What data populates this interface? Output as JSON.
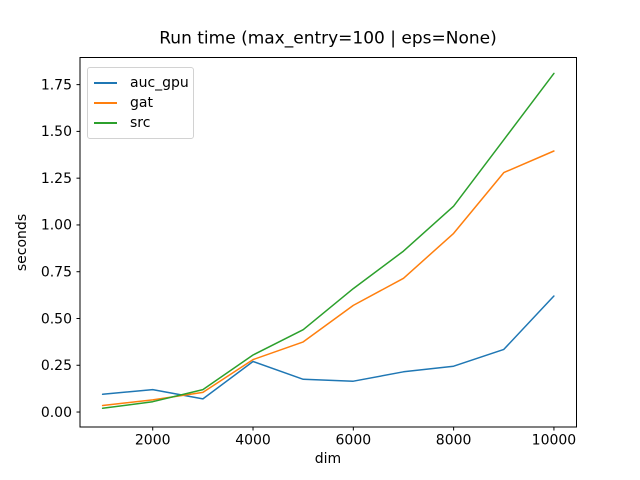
{
  "chart_data": {
    "type": "line",
    "title": "Run time (max_entry=100 | eps=None)",
    "xlabel": "dim",
    "ylabel": "seconds",
    "x": [
      1000,
      2000,
      3000,
      4000,
      5000,
      6000,
      7000,
      8000,
      9000,
      10000
    ],
    "series": [
      {
        "name": "auc_gpu",
        "color": "#1f77b4",
        "values": [
          0.095,
          0.12,
          0.07,
          0.27,
          0.175,
          0.165,
          0.215,
          0.245,
          0.335,
          0.62
        ]
      },
      {
        "name": "gat",
        "color": "#ff7f0e",
        "values": [
          0.035,
          0.065,
          0.105,
          0.28,
          0.375,
          0.57,
          0.715,
          0.955,
          1.28,
          1.395
        ]
      },
      {
        "name": "src",
        "color": "#2ca02c",
        "values": [
          0.02,
          0.055,
          0.12,
          0.305,
          0.44,
          0.66,
          0.86,
          1.1,
          1.455,
          1.81
        ]
      }
    ],
    "xticks": [
      2000,
      4000,
      6000,
      8000,
      10000
    ],
    "ytick_labels": [
      "0.00",
      "0.25",
      "0.50",
      "0.75",
      "1.00",
      "1.25",
      "1.50",
      "1.75"
    ],
    "xlim": [
      550,
      10450
    ],
    "ylim": [
      -0.08,
      1.895
    ],
    "grid": false,
    "line_width": 1.5,
    "legend_position": "upper left",
    "colors": {
      "spine": "#000000",
      "tick": "#000000",
      "text": "#000000",
      "background": "#ffffff"
    }
  }
}
